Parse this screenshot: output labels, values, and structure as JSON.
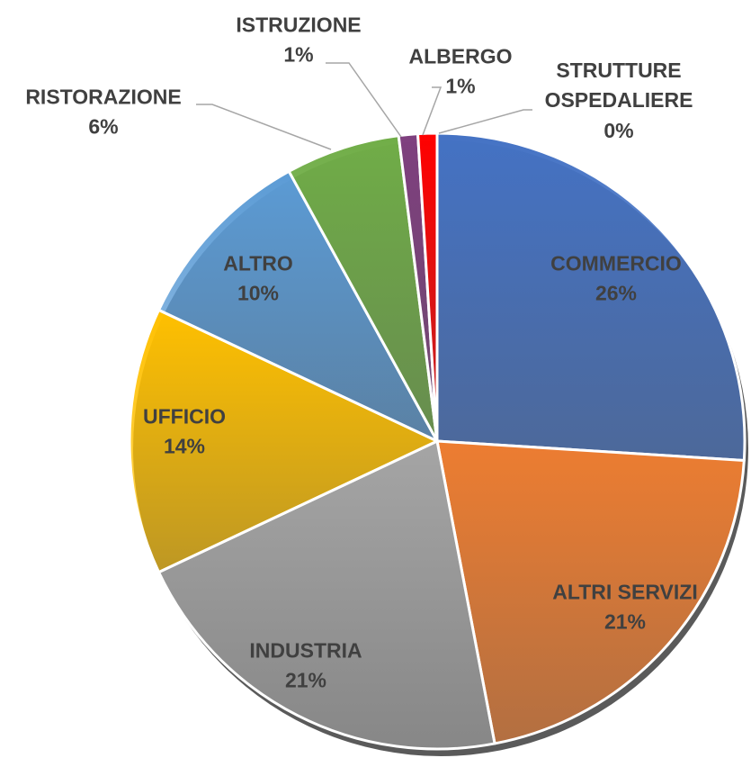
{
  "chart_data": {
    "type": "pie",
    "categories": [
      "COMMERCIO",
      "ALTRI SERVIZI",
      "INDUSTRIA",
      "UFFICIO",
      "ALTRO",
      "RISTORAZIONE",
      "ISTRUZIONE",
      "ALBERGO",
      "STRUTTURE OSPEDALIERE"
    ],
    "values": [
      26,
      21,
      21,
      14,
      10,
      6,
      1,
      1,
      0
    ],
    "value_labels": [
      "26%",
      "21%",
      "21%",
      "14%",
      "10%",
      "6%",
      "1%",
      "1%",
      "0%"
    ],
    "colors": [
      "#4472c4",
      "#ed7d31",
      "#a5a5a5",
      "#ffc000",
      "#5b9bd5",
      "#70ad47",
      "#7e3f7e",
      "#ff0000",
      "#264478"
    ]
  }
}
